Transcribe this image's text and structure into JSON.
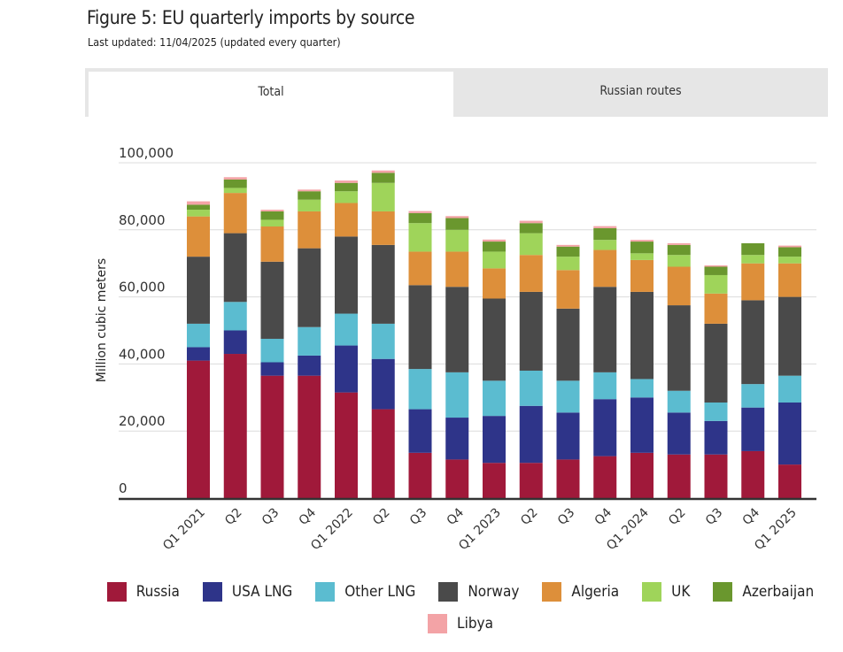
{
  "header": {
    "title": "Figure 5: EU quarterly imports by source",
    "subtitle": "Last updated: 11/04/2025 (updated every quarter)"
  },
  "tabs": [
    {
      "label": "Total",
      "active": true
    },
    {
      "label": "Russian routes",
      "active": false
    }
  ],
  "chart_data": {
    "type": "bar",
    "stacked": true,
    "title": "Figure 5: EU quarterly imports by source",
    "xlabel": "",
    "ylabel": "Million cubic meters",
    "ylim": [
      0,
      100000
    ],
    "yticks": [
      0,
      20000,
      40000,
      60000,
      80000,
      100000
    ],
    "ytick_labels": [
      "0",
      "20,000",
      "40,000",
      "60,000",
      "80,000",
      "100,000"
    ],
    "grid": true,
    "legend_position": "bottom",
    "categories": [
      "Q1 2021",
      "Q2",
      "Q3",
      "Q4",
      "Q1 2022",
      "Q2",
      "Q3",
      "Q4",
      "Q1 2023",
      "Q2",
      "Q3",
      "Q4",
      "Q1 2024",
      "Q2",
      "Q3",
      "Q4",
      "Q1 2025"
    ],
    "tick_labels": [
      "Q1 2021",
      "Q2",
      "Q3",
      "Q4",
      "Q1 2022",
      "Q2",
      "Q3",
      "Q4",
      "Q1 2023",
      "Q2",
      "Q3",
      "Q4",
      "Q1 2024",
      "Q2",
      "Q3",
      "Q4",
      "Q1 2025"
    ],
    "series": [
      {
        "name": "Russia",
        "color": "#a0193a",
        "values": [
          41000,
          43000,
          36500,
          36500,
          31500,
          26500,
          13500,
          11500,
          10500,
          10500,
          11500,
          12500,
          13500,
          13000,
          13000,
          14000,
          10000
        ]
      },
      {
        "name": "USA LNG",
        "color": "#2e3489",
        "values": [
          4000,
          7000,
          4000,
          6000,
          14000,
          15000,
          13000,
          12500,
          14000,
          17000,
          14000,
          17000,
          16500,
          12500,
          10000,
          13000,
          18500
        ]
      },
      {
        "name": "Other LNG",
        "color": "#5bbcd0",
        "values": [
          7000,
          8500,
          7000,
          8500,
          9500,
          10500,
          12000,
          13500,
          10500,
          10500,
          9500,
          8000,
          5500,
          6500,
          5500,
          7000,
          8000
        ]
      },
      {
        "name": "Norway",
        "color": "#4a4a4a",
        "values": [
          20000,
          20500,
          23000,
          23500,
          23000,
          23500,
          25000,
          25500,
          24500,
          23500,
          21500,
          25500,
          26000,
          25500,
          23500,
          25000,
          23500
        ]
      },
      {
        "name": "Algeria",
        "color": "#dd8f3a",
        "values": [
          12000,
          12000,
          10500,
          11000,
          10000,
          10000,
          10000,
          10500,
          9000,
          11000,
          11500,
          11000,
          9500,
          11500,
          9000,
          11000,
          10000
        ]
      },
      {
        "name": "UK",
        "color": "#9fd45a",
        "values": [
          2000,
          1500,
          2000,
          3500,
          3500,
          8500,
          8500,
          6500,
          5000,
          6500,
          4000,
          3000,
          2000,
          3500,
          5500,
          2500,
          2000
        ]
      },
      {
        "name": "Azerbaijan",
        "color": "#6a972e",
        "values": [
          1500,
          2500,
          2500,
          2500,
          2500,
          3000,
          3000,
          3500,
          3000,
          3000,
          3000,
          3500,
          3500,
          3000,
          2500,
          3500,
          2800
        ]
      },
      {
        "name": "Libya",
        "color": "#f3a3a6",
        "values": [
          1000,
          700,
          500,
          500,
          700,
          700,
          600,
          600,
          600,
          700,
          500,
          600,
          500,
          500,
          400,
          0,
          500
        ]
      }
    ]
  }
}
